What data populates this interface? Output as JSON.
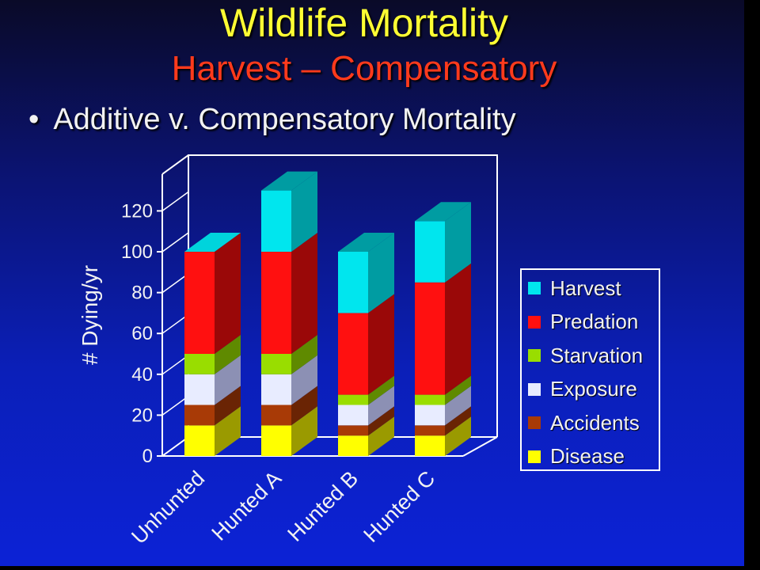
{
  "slide": {
    "title": "Wildlife Mortality",
    "subtitle": "Harvest – Compensatory",
    "bullet_marker": "•",
    "bullet_text": "Additive v. Compensatory Mortality"
  },
  "chart_data": {
    "type": "bar",
    "stacked": true,
    "three_d": true,
    "categories": [
      "Unhunted",
      "Hunted A",
      "Hunted B",
      "Hunted C"
    ],
    "series": [
      {
        "name": "Disease",
        "color": "#ffff00",
        "side": "#9a9a00",
        "values": [
          15,
          15,
          10,
          10
        ]
      },
      {
        "name": "Accidents",
        "color": "#a83a06",
        "side": "#6a2404",
        "values": [
          10,
          10,
          5,
          5
        ]
      },
      {
        "name": "Exposure",
        "color": "#e8ecff",
        "side": "#8c90b4",
        "values": [
          15,
          15,
          10,
          10
        ]
      },
      {
        "name": "Starvation",
        "color": "#99dd00",
        "side": "#5f8a00",
        "values": [
          10,
          10,
          5,
          5
        ]
      },
      {
        "name": "Predation",
        "color": "#ff1010",
        "side": "#9a0808",
        "values": [
          50,
          50,
          40,
          55
        ]
      },
      {
        "name": "Harvest",
        "color": "#00e6ee",
        "side": "#009ca2",
        "values": [
          0,
          30,
          30,
          30
        ]
      }
    ],
    "ylabel": "# Dying/yr",
    "xlabel": "",
    "ylim": [
      0,
      120
    ],
    "yticks": [
      0,
      20,
      40,
      60,
      80,
      100,
      120
    ],
    "grid": false,
    "legend_position": "right"
  },
  "legend_order": [
    "Harvest",
    "Predation",
    "Starvation",
    "Exposure",
    "Accidents",
    "Disease"
  ]
}
